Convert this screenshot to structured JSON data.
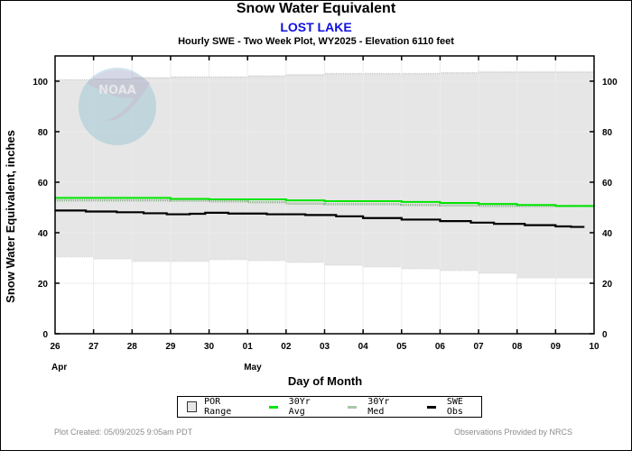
{
  "header": {
    "title": "Snow Water Equivalent",
    "station": "LOST LAKE",
    "subtitle": "Hourly SWE - Two Week Plot, WY2025 -  Elevation 6110 feet"
  },
  "footer": {
    "created": "Plot Created: 05/09/2025 9:05am PDT",
    "credit": "Observations Provided by NRCS"
  },
  "watermark": "NOAA",
  "chart_data": {
    "type": "line",
    "title": "Snow Water Equivalent",
    "subtitle": "Hourly SWE - Two Week Plot, WY2025 -  Elevation 6110 feet",
    "xlabel": "Day of Month",
    "ylabel": "Snow Water Equivalent, inches",
    "ylim": [
      0,
      110
    ],
    "yticks": [
      0,
      20,
      40,
      60,
      80,
      100
    ],
    "xlim": [
      0,
      14
    ],
    "xtick_labels": [
      "26",
      "27",
      "28",
      "29",
      "30",
      "01",
      "02",
      "03",
      "04",
      "05",
      "06",
      "07",
      "08",
      "09",
      "10"
    ],
    "month_labels": [
      {
        "at": 0,
        "label": "Apr"
      },
      {
        "at": 5,
        "label": "May"
      }
    ],
    "grid": true,
    "legend_position": "bottom",
    "colors": {
      "por_fill": "#e6e6e6",
      "por_edge": "#c8c8c8",
      "avg": "#00e600",
      "median": "#8cb48c",
      "obs": "#000000"
    },
    "legend": [
      {
        "key": "por",
        "label": "POR Range"
      },
      {
        "key": "avg",
        "label": "30Yr Avg"
      },
      {
        "key": "median",
        "label": "30Yr Med"
      },
      {
        "key": "obs",
        "label": "SWE Obs"
      }
    ],
    "series": [
      {
        "name": "POR Max",
        "x": [
          0,
          1,
          2,
          3,
          4,
          5,
          6,
          7,
          8,
          9,
          10,
          11,
          12,
          13,
          14
        ],
        "values": [
          100.5,
          100.8,
          101.3,
          101.6,
          101.6,
          102.0,
          102.5,
          103.0,
          103.0,
          103.0,
          103.3,
          103.6,
          103.6,
          103.6,
          103.2
        ]
      },
      {
        "name": "POR Min",
        "x": [
          0,
          1,
          2,
          3,
          4,
          5,
          6,
          7,
          8,
          9,
          10,
          11,
          12,
          13,
          14
        ],
        "values": [
          30.5,
          29.7,
          28.7,
          28.7,
          29.4,
          29.0,
          28.3,
          27.2,
          26.5,
          25.8,
          25.1,
          24.0,
          22.2,
          22.2,
          22.2
        ]
      },
      {
        "name": "30Yr Avg",
        "x": [
          0,
          1,
          2,
          3,
          4,
          5,
          6,
          7,
          8,
          9,
          10,
          11,
          12,
          13,
          14
        ],
        "values": [
          53.8,
          53.8,
          53.8,
          53.4,
          53.2,
          53.2,
          52.8,
          52.5,
          52.5,
          52.2,
          51.8,
          51.4,
          51.0,
          50.6,
          50.6
        ]
      },
      {
        "name": "30Yr Med",
        "x": [
          0,
          1,
          2,
          3,
          4,
          5,
          6,
          7,
          8,
          9,
          10,
          11,
          12,
          13,
          14
        ],
        "values": [
          52.8,
          52.8,
          52.8,
          52.7,
          52.4,
          52.1,
          51.5,
          51.3,
          51.3,
          51.0,
          50.8,
          50.6,
          50.6,
          50.6,
          50.6
        ]
      },
      {
        "name": "SWE Obs",
        "x": [
          0,
          0.8,
          1.6,
          2.3,
          2.9,
          3.5,
          3.9,
          4.5,
          5.5,
          6.5,
          7.3,
          8.0,
          9.0,
          10.0,
          10.8,
          11.4,
          12.2,
          13.0,
          13.4
        ],
        "values": [
          48.8,
          48.4,
          48.1,
          47.7,
          47.3,
          47.5,
          47.9,
          47.6,
          47.3,
          47.0,
          46.5,
          45.8,
          45.2,
          44.6,
          44.0,
          43.5,
          43.0,
          42.5,
          42.3
        ]
      }
    ]
  }
}
